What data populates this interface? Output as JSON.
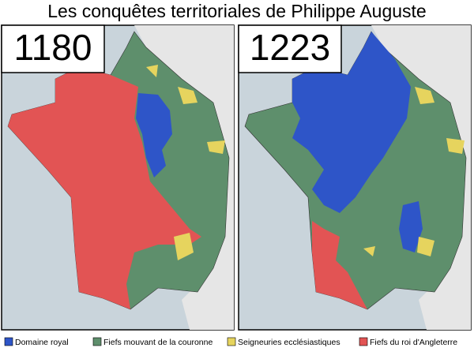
{
  "title": "Les conquêtes territoriales de Philippe Auguste",
  "panels": [
    {
      "year": "1180"
    },
    {
      "year": "1223"
    }
  ],
  "legend": [
    {
      "label": "Domaine royal",
      "color": "#2e55c8"
    },
    {
      "label": "Fiefs mouvant de la couronne",
      "color": "#5e8f6c"
    },
    {
      "label": "Seigneuries ecclésiastiques",
      "color": "#e6d45e"
    },
    {
      "label": "Fiefs du roi d'Angleterre",
      "color": "#e25454"
    }
  ]
}
